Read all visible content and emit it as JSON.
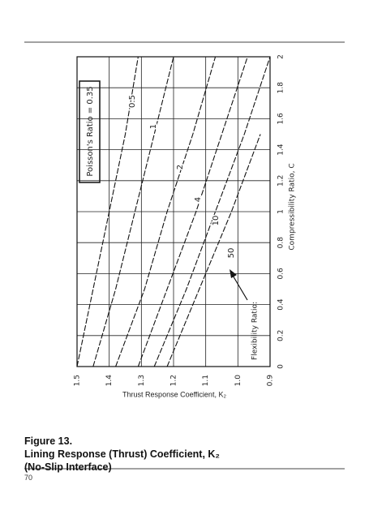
{
  "chart_data": {
    "type": "line",
    "x_label": "Compressibility Ratio, C",
    "y_label": "Thrust Response Coefficient, K₂",
    "annotation": "Poisson's Ratio = 0.35",
    "legend_title": "Flexibility Ratio:",
    "x": [
      0,
      0.5,
      1,
      1.5,
      2
    ],
    "series": [
      {
        "name": "0.5",
        "color": "#111",
        "values": [
          1.5,
          1.45,
          1.4,
          1.35,
          1.31
        ]
      },
      {
        "name": "1",
        "color": "#111",
        "values": [
          1.45,
          1.38,
          1.32,
          1.26,
          1.2
        ]
      },
      {
        "name": "2",
        "color": "#111",
        "values": [
          1.38,
          1.29,
          1.22,
          1.14,
          1.07
        ]
      },
      {
        "name": "4",
        "color": "#111",
        "values": [
          1.31,
          1.22,
          1.13,
          1.05,
          0.97
        ]
      },
      {
        "name": "10",
        "color": "#111",
        "values": [
          1.26,
          1.16,
          1.07,
          0.98,
          0.9
        ]
      },
      {
        "name": "50",
        "color": "#111",
        "values": [
          1.22,
          1.12,
          1.02,
          0.93,
          null
        ]
      }
    ],
    "xlim": [
      0,
      2
    ],
    "xticks": [
      0,
      0.2,
      0.4,
      0.6,
      0.8,
      1,
      1.2,
      1.4,
      1.6,
      1.8,
      2
    ],
    "ylim": [
      0.9,
      1.5
    ],
    "yticks": [
      0.9,
      {
        "value": 1,
        "label": "1.0"
      },
      1.1,
      1.2,
      1.3,
      1.4,
      1.5
    ],
    "grid": true
  },
  "figure": {
    "label": "Figure 13.",
    "caption_line1": "Lining Response (Thrust) Coefficient, K₂",
    "caption_line2": "(No-Slip Interface)"
  },
  "page_number": "70"
}
